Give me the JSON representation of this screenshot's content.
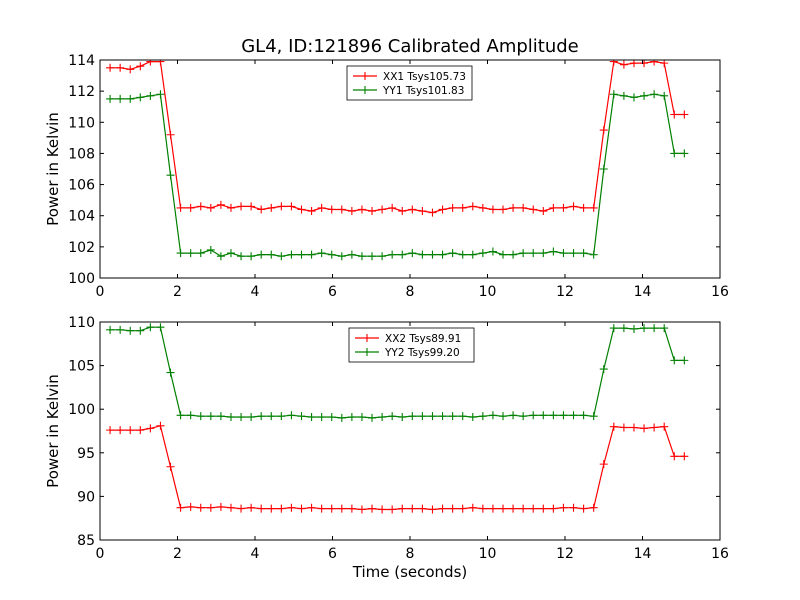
{
  "title": "GL4, ID:121896 Calibrated Amplitude",
  "chart_data": [
    {
      "type": "line",
      "ylabel": "Power in Kelvin",
      "xlabel": "",
      "xlim": [
        0,
        16
      ],
      "ylim": [
        100,
        114
      ],
      "xticks": [
        0,
        2,
        4,
        6,
        8,
        10,
        12,
        14,
        16
      ],
      "yticks": [
        100,
        102,
        104,
        106,
        108,
        110,
        112,
        114
      ],
      "legend_position": "top-center",
      "x": [
        0.26,
        0.52,
        0.78,
        1.04,
        1.3,
        1.56,
        1.82,
        2.08,
        2.34,
        2.6,
        2.86,
        3.12,
        3.38,
        3.64,
        3.9,
        4.16,
        4.42,
        4.68,
        4.94,
        5.2,
        5.46,
        5.72,
        5.98,
        6.24,
        6.5,
        6.76,
        7.02,
        7.28,
        7.54,
        7.8,
        8.06,
        8.32,
        8.58,
        8.84,
        9.1,
        9.36,
        9.62,
        9.88,
        10.14,
        10.4,
        10.66,
        10.92,
        11.18,
        11.44,
        11.7,
        11.96,
        12.22,
        12.48,
        12.74,
        13.0,
        13.26,
        13.52,
        13.78,
        14.04,
        14.3,
        14.56,
        14.82,
        15.08
      ],
      "series": [
        {
          "name": "XX1 Tsys105.73",
          "color": "#ff0000",
          "values": [
            113.5,
            113.5,
            113.4,
            113.6,
            113.9,
            113.9,
            109.2,
            104.5,
            104.5,
            104.6,
            104.5,
            104.7,
            104.5,
            104.6,
            104.6,
            104.4,
            104.5,
            104.6,
            104.6,
            104.4,
            104.3,
            104.5,
            104.4,
            104.4,
            104.3,
            104.4,
            104.3,
            104.4,
            104.5,
            104.3,
            104.4,
            104.3,
            104.2,
            104.4,
            104.5,
            104.5,
            104.6,
            104.5,
            104.4,
            104.4,
            104.5,
            104.5,
            104.4,
            104.3,
            104.5,
            104.5,
            104.6,
            104.5,
            104.5,
            109.5,
            113.9,
            113.7,
            113.8,
            113.8,
            113.9,
            113.8,
            110.5,
            110.5
          ]
        },
        {
          "name": "YY1 Tsys101.83",
          "color": "#008000",
          "values": [
            111.5,
            111.5,
            111.5,
            111.6,
            111.7,
            111.8,
            106.6,
            101.6,
            101.6,
            101.6,
            101.8,
            101.4,
            101.6,
            101.4,
            101.4,
            101.5,
            101.5,
            101.4,
            101.5,
            101.5,
            101.5,
            101.6,
            101.5,
            101.4,
            101.5,
            101.4,
            101.4,
            101.4,
            101.5,
            101.5,
            101.6,
            101.5,
            101.5,
            101.5,
            101.6,
            101.5,
            101.5,
            101.6,
            101.7,
            101.5,
            101.5,
            101.6,
            101.6,
            101.6,
            101.7,
            101.6,
            101.6,
            101.6,
            101.5,
            107.0,
            111.8,
            111.7,
            111.6,
            111.7,
            111.8,
            111.7,
            108.0,
            108.0
          ]
        }
      ]
    },
    {
      "type": "line",
      "ylabel": "Power in Kelvin",
      "xlabel": "Time (seconds)",
      "xlim": [
        0,
        16
      ],
      "ylim": [
        85,
        110
      ],
      "xticks": [
        0,
        2,
        4,
        6,
        8,
        10,
        12,
        14,
        16
      ],
      "yticks": [
        85,
        90,
        95,
        100,
        105,
        110
      ],
      "legend_position": "top-center",
      "x": [
        0.26,
        0.52,
        0.78,
        1.04,
        1.3,
        1.56,
        1.82,
        2.08,
        2.34,
        2.6,
        2.86,
        3.12,
        3.38,
        3.64,
        3.9,
        4.16,
        4.42,
        4.68,
        4.94,
        5.2,
        5.46,
        5.72,
        5.98,
        6.24,
        6.5,
        6.76,
        7.02,
        7.28,
        7.54,
        7.8,
        8.06,
        8.32,
        8.58,
        8.84,
        9.1,
        9.36,
        9.62,
        9.88,
        10.14,
        10.4,
        10.66,
        10.92,
        11.18,
        11.44,
        11.7,
        11.96,
        12.22,
        12.48,
        12.74,
        13.0,
        13.26,
        13.52,
        13.78,
        14.04,
        14.3,
        14.56,
        14.82,
        15.08
      ],
      "series": [
        {
          "name": "XX2 Tsys89.91",
          "color": "#ff0000",
          "values": [
            97.6,
            97.6,
            97.6,
            97.6,
            97.8,
            98.1,
            93.4,
            88.7,
            88.8,
            88.7,
            88.7,
            88.8,
            88.7,
            88.6,
            88.7,
            88.6,
            88.6,
            88.6,
            88.7,
            88.6,
            88.7,
            88.6,
            88.6,
            88.6,
            88.6,
            88.5,
            88.6,
            88.5,
            88.5,
            88.6,
            88.6,
            88.6,
            88.5,
            88.6,
            88.6,
            88.6,
            88.7,
            88.6,
            88.6,
            88.6,
            88.6,
            88.6,
            88.6,
            88.6,
            88.6,
            88.7,
            88.7,
            88.6,
            88.7,
            93.7,
            98.0,
            97.9,
            97.9,
            97.8,
            97.9,
            98.0,
            94.6,
            94.6
          ]
        },
        {
          "name": "YY2 Tsys99.20",
          "color": "#008000",
          "values": [
            109.1,
            109.1,
            109.0,
            109.0,
            109.4,
            109.4,
            104.2,
            99.3,
            99.3,
            99.2,
            99.2,
            99.2,
            99.1,
            99.1,
            99.1,
            99.2,
            99.2,
            99.2,
            99.3,
            99.2,
            99.1,
            99.1,
            99.1,
            99.0,
            99.1,
            99.1,
            99.0,
            99.1,
            99.2,
            99.1,
            99.2,
            99.2,
            99.2,
            99.2,
            99.2,
            99.2,
            99.1,
            99.2,
            99.3,
            99.2,
            99.3,
            99.2,
            99.3,
            99.3,
            99.3,
            99.3,
            99.3,
            99.3,
            99.2,
            104.6,
            109.3,
            109.3,
            109.2,
            109.3,
            109.3,
            109.3,
            105.6,
            105.6
          ]
        }
      ]
    }
  ]
}
